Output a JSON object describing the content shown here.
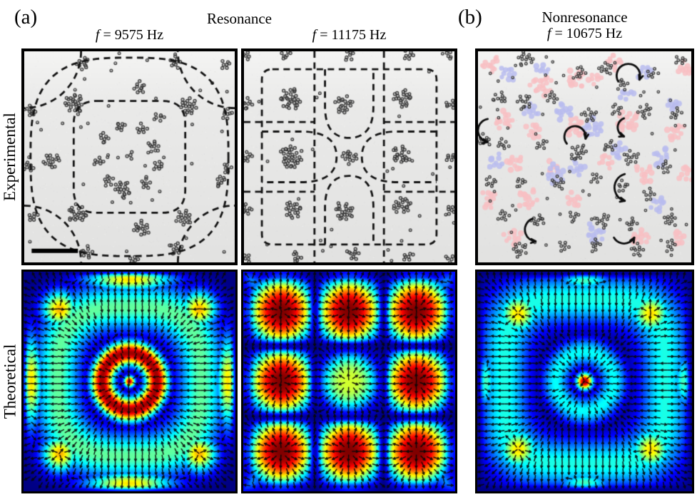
{
  "header": {
    "panel_a_tag": "(a)",
    "panel_b_tag": "(b)",
    "resonance_label": "Resonance",
    "nonresonance_label": "Nonresonance",
    "freq_symbol": "f",
    "freq1": "= 9575 Hz",
    "freq2": "= 11175 Hz",
    "freq3": "= 10675 Hz"
  },
  "rows": {
    "experimental_label": "Experimental",
    "theoretical_label": "Theoretical"
  },
  "panels": [
    {
      "row": "Experimental",
      "condition": "Resonance",
      "frequency_hz": "9575"
    },
    {
      "row": "Experimental",
      "condition": "Resonance",
      "frequency_hz": "11175"
    },
    {
      "row": "Experimental",
      "condition": "Nonresonance",
      "frequency_hz": "10675"
    },
    {
      "row": "Theoretical",
      "condition": "Resonance",
      "frequency_hz": "9575"
    },
    {
      "row": "Theoretical",
      "condition": "Resonance",
      "frequency_hz": "11175"
    },
    {
      "row": "Theoretical",
      "condition": "Nonresonance",
      "frequency_hz": "10675"
    }
  ],
  "colors": {
    "overlay_pink": "#f8bfc3",
    "overlay_blue": "#b9bcee",
    "micrograph_background": "#eaeae9",
    "nodal_line": "#141414",
    "colormap": "jet"
  }
}
